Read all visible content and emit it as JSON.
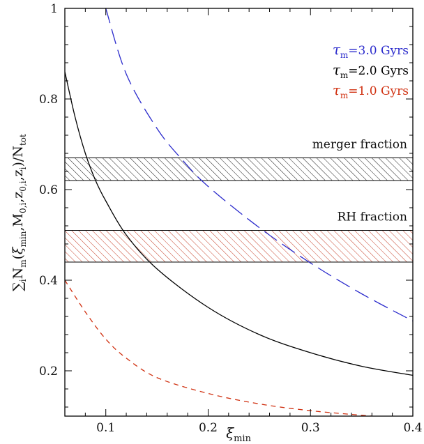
{
  "chart_data": {
    "type": "line",
    "xlabel": "ξmin",
    "ylabel": "Σi Nm(ξmin, M0,i, z0,i, zi) / Ntot",
    "xlim": [
      0.06,
      0.4
    ],
    "ylim": [
      0.1,
      1.0
    ],
    "x_ticks": [
      0.1,
      0.2,
      0.3,
      0.4
    ],
    "x_tick_labels": [
      "0.1",
      "0.2",
      "0.3",
      "0.4"
    ],
    "y_ticks": [
      0.2,
      0.4,
      0.6,
      0.8,
      1.0
    ],
    "y_tick_labels": [
      "0.2",
      "0.4",
      "0.6",
      "0.8",
      "1"
    ],
    "grid": false,
    "legend_position": "top-right",
    "series": [
      {
        "name": "τm=3.0 Gyrs",
        "color": "#2b2bcc",
        "dash": "long",
        "x": [
          0.1,
          0.12,
          0.15,
          0.175,
          0.2,
          0.25,
          0.3,
          0.35,
          0.4
        ],
        "y": [
          1.0,
          0.855,
          0.735,
          0.665,
          0.607,
          0.516,
          0.438,
          0.37,
          0.31
        ]
      },
      {
        "name": "τm=2.0 Gyrs",
        "color": "#000000",
        "dash": "solid",
        "x": [
          0.06,
          0.07,
          0.08,
          0.09,
          0.1,
          0.12,
          0.15,
          0.2,
          0.25,
          0.3,
          0.35,
          0.4
        ],
        "y": [
          0.86,
          0.76,
          0.68,
          0.62,
          0.575,
          0.5,
          0.425,
          0.34,
          0.28,
          0.24,
          0.21,
          0.19
        ]
      },
      {
        "name": "τm=1.0 Gyrs",
        "color": "#d03010",
        "dash": "short",
        "x": [
          0.06,
          0.08,
          0.1,
          0.12,
          0.15,
          0.2,
          0.25,
          0.3,
          0.36
        ],
        "y": [
          0.4,
          0.33,
          0.27,
          0.228,
          0.185,
          0.15,
          0.127,
          0.112,
          0.1
        ]
      }
    ],
    "bands": [
      {
        "label": "merger fraction",
        "y_range": [
          0.62,
          0.67
        ],
        "hatch_color": "#000000"
      },
      {
        "label": "RH fraction",
        "y_range": [
          0.44,
          0.51
        ],
        "hatch_color": "#c02a10"
      }
    ]
  }
}
